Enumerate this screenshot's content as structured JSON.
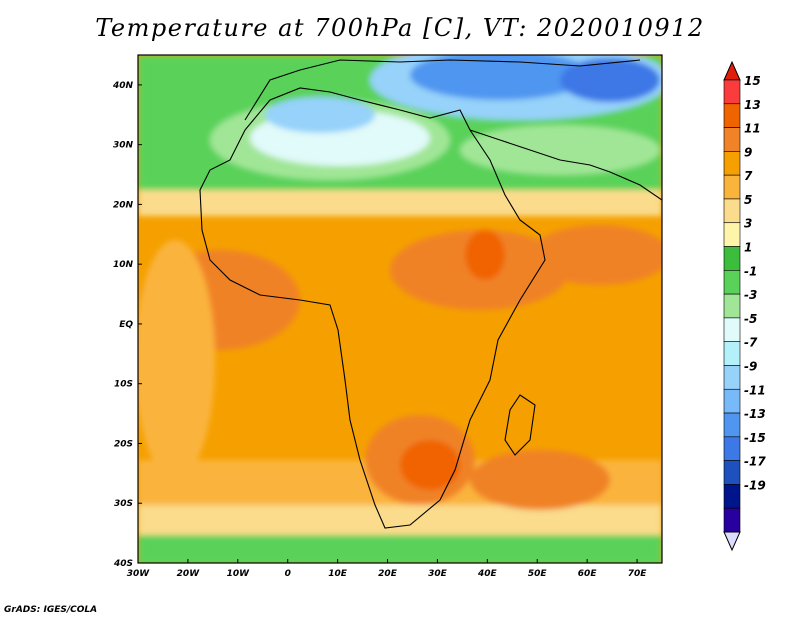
{
  "title": "Temperature at 700hPa [C], VT: 2020010912",
  "credit": "GrADS: IGES/COLA",
  "map": {
    "lon_range": [
      -30,
      75
    ],
    "lat_range": [
      -40,
      45
    ],
    "lon_labels": [
      {
        "value": -30,
        "text": "30W"
      },
      {
        "value": -20,
        "text": "20W"
      },
      {
        "value": -10,
        "text": "10W"
      },
      {
        "value": 0,
        "text": "0"
      },
      {
        "value": 10,
        "text": "10E"
      },
      {
        "value": 20,
        "text": "20E"
      },
      {
        "value": 30,
        "text": "30E"
      },
      {
        "value": 40,
        "text": "40E"
      },
      {
        "value": 50,
        "text": "50E"
      },
      {
        "value": 60,
        "text": "60E"
      },
      {
        "value": 70,
        "text": "70E"
      }
    ],
    "lat_labels": [
      {
        "value": 40,
        "text": "40N"
      },
      {
        "value": 30,
        "text": "30N"
      },
      {
        "value": 20,
        "text": "20N"
      },
      {
        "value": 10,
        "text": "10N"
      },
      {
        "value": 0,
        "text": "EQ"
      },
      {
        "value": -10,
        "text": "10S"
      },
      {
        "value": -20,
        "text": "20S"
      },
      {
        "value": -30,
        "text": "30S"
      },
      {
        "value": -40,
        "text": "40S"
      }
    ]
  },
  "colorbar": {
    "levels": [
      "15",
      "13",
      "11",
      "9",
      "7",
      "5",
      "3",
      "1",
      "-1",
      "-3",
      "-5",
      "-7",
      "-9",
      "-11",
      "-13",
      "-15",
      "-17",
      "-19"
    ],
    "colors": [
      "#fa3c3c",
      "#f06400",
      "#f08228",
      "#f5a000",
      "#fab43c",
      "#fadc8c",
      "#fff5aa",
      "#3cbe3c",
      "#5ad25a",
      "#a0e696",
      "#e1fafa",
      "#b4f0fa",
      "#96d2fa",
      "#78b9fa",
      "#5096f0",
      "#3c78e6",
      "#1e50be",
      "#00148c",
      "#2800a0"
    ],
    "top_color": "#e11e0a",
    "bottom_color": "#dcdcff"
  }
}
